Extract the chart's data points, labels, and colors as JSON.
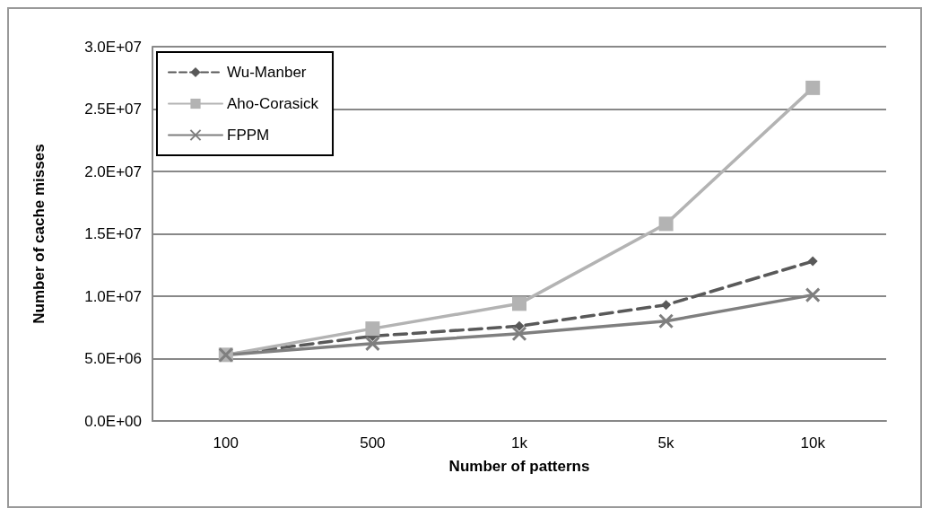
{
  "chart_data": {
    "type": "line",
    "xlabel": "Number of patterns",
    "ylabel": "Number of cache misses",
    "categories": [
      "100",
      "500",
      "1k",
      "5k",
      "10k"
    ],
    "series": [
      {
        "name": "Wu-Manber",
        "color": "#595959",
        "marker": "diamond",
        "line_style": "dashed",
        "values": [
          5300000,
          6800000,
          7600000,
          9300000,
          12800000
        ]
      },
      {
        "name": "Aho-Corasick",
        "color": "#b3b3b3",
        "marker": "square",
        "line_style": "solid",
        "values": [
          5300000,
          7400000,
          9400000,
          15800000,
          26700000
        ]
      },
      {
        "name": "FPPM",
        "color": "#7f7f7f",
        "marker": "cross",
        "line_style": "solid",
        "values": [
          5300000,
          6200000,
          7000000,
          8000000,
          10100000
        ]
      }
    ],
    "ylim": [
      0,
      30000000
    ],
    "yticks": [
      {
        "value": 0,
        "label": "0.0E+00"
      },
      {
        "value": 5000000,
        "label": "5.0E+06"
      },
      {
        "value": 10000000,
        "label": "1.0E+07"
      },
      {
        "value": 15000000,
        "label": "1.5E+07"
      },
      {
        "value": 20000000,
        "label": "2.0E+07"
      },
      {
        "value": 25000000,
        "label": "2.5E+07"
      },
      {
        "value": 30000000,
        "label": "3.0E+07"
      }
    ],
    "grid": "y",
    "legend": "top left"
  }
}
